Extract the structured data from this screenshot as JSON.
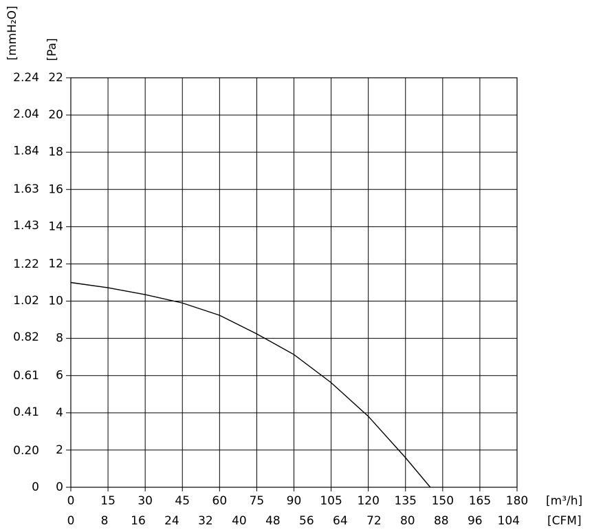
{
  "chart_data": {
    "type": "line",
    "xlabel": "[m³/h]",
    "x2label": "[CFM]",
    "ylabel": "[Pa]",
    "y2label": "[mmH₂O]",
    "x": [
      0,
      15,
      30,
      45,
      60,
      75,
      90,
      105,
      120,
      135,
      145
    ],
    "values": [
      11.0,
      10.72,
      10.35,
      9.9,
      9.24,
      8.24,
      7.13,
      5.62,
      3.81,
      1.59,
      0
    ],
    "color": "#000000",
    "xlim": [
      0,
      180
    ],
    "xticks": [
      0,
      15,
      30,
      45,
      60,
      75,
      90,
      105,
      120,
      135,
      150,
      165,
      180
    ],
    "x2lim": [
      0,
      106
    ],
    "x2ticks": [
      0,
      8,
      16,
      24,
      32,
      40,
      48,
      56,
      64,
      72,
      80,
      88,
      96,
      104
    ],
    "ylim": [
      0,
      22
    ],
    "yticks": [
      0,
      2,
      4,
      6,
      8,
      10,
      12,
      14,
      16,
      18,
      20,
      22
    ],
    "y2lim": [
      0,
      2.24
    ],
    "y2ticks": [
      0,
      {
        "value": 0.2,
        "label": "0.20"
      },
      0.41,
      0.61,
      0.82,
      1.02,
      1.22,
      1.43,
      1.63,
      1.84,
      2.04,
      2.24
    ],
    "grid": true
  }
}
